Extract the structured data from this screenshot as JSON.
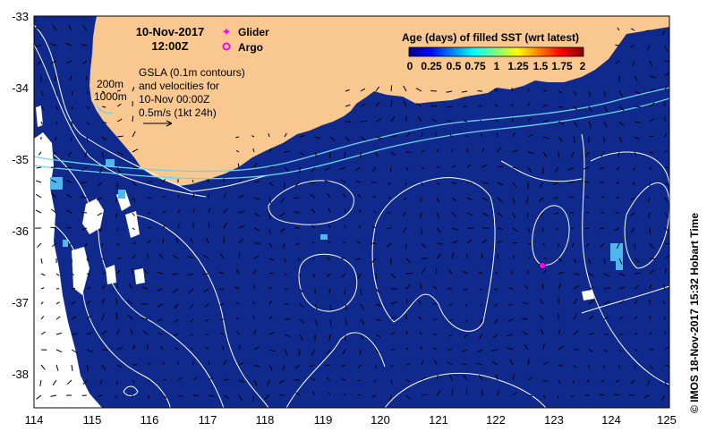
{
  "map": {
    "date": "10-Nov-2017",
    "time": "12:00Z",
    "legend_glider": "Glider",
    "legend_argo": "Argo",
    "gsla_line1": "GSLA (0.1m contours)",
    "gsla_line2": "and velocities for",
    "gsla_line3": "10-Nov 00:00Z",
    "gsla_line4": "0.5m/s (1kt 24h)",
    "isobath_200": "200m",
    "isobath_1000": "1000m",
    "colorbar_title": "Age (days) of filled SST (wrt latest)",
    "colorbar_ticks": [
      "0",
      "0.25",
      "0.5",
      "0.75",
      "1",
      "1.25",
      "1.5",
      "1.75",
      "2"
    ],
    "credit": "© IMOS 18-Nov-2017 15:32 Hobart Time",
    "lon_ticks": [
      "114",
      "115",
      "116",
      "117",
      "118",
      "119",
      "120",
      "121",
      "122",
      "123",
      "124",
      "125"
    ],
    "lat_ticks": [
      "-33",
      "-34",
      "-35",
      "-36",
      "-37",
      "-38"
    ],
    "colors": {
      "ocean": "#0f2a8c",
      "land": "#f9c890",
      "missing": "#ffffff",
      "contour": "#ffffff",
      "isobath": "#6fd3f0",
      "glider": "#ff00ff",
      "argo": "#ff00ff"
    }
  }
}
